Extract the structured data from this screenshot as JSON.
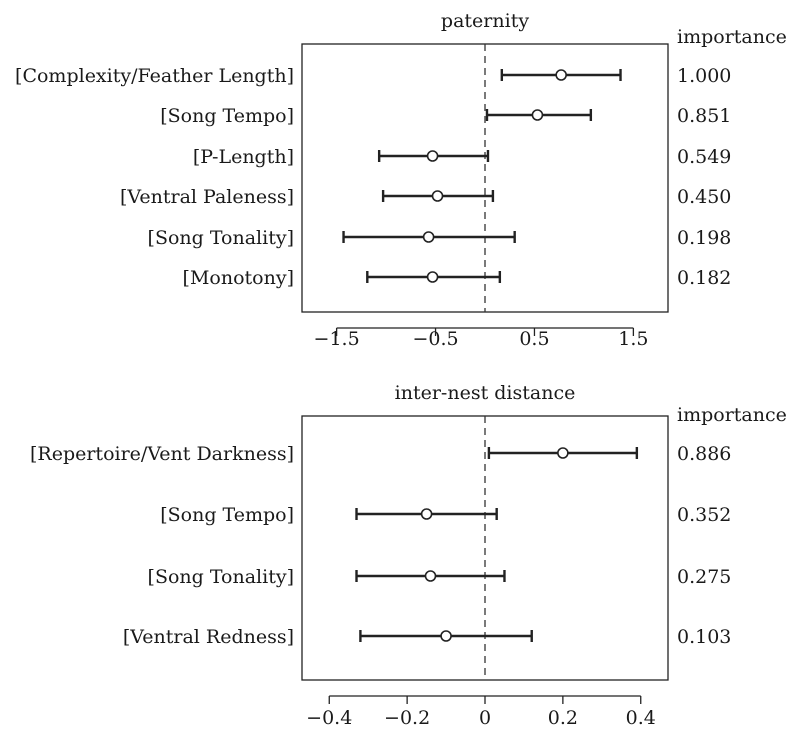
{
  "chart_data": [
    {
      "type": "scatter",
      "subtype": "coefficient-plot-with-error-bars",
      "title": "paternity",
      "importance_label": "importance",
      "xlim": [
        -1.85,
        1.85
      ],
      "xticks": [
        -1.5,
        -0.5,
        0.5,
        1.5
      ],
      "xtick_labels": [
        "−1.5",
        "−0.5",
        "0.5",
        "1.5"
      ],
      "reference_line": 0,
      "grid": false,
      "items": [
        {
          "label": "[Complexity/Feather Length]",
          "estimate": 0.77,
          "lower": 0.17,
          "upper": 1.37,
          "importance": "1.000"
        },
        {
          "label": "[Song Tempo]",
          "estimate": 0.53,
          "lower": 0.02,
          "upper": 1.07,
          "importance": "0.851"
        },
        {
          "label": "[P-Length]",
          "estimate": -0.53,
          "lower": -1.07,
          "upper": 0.03,
          "importance": "0.549"
        },
        {
          "label": "[Ventral Paleness]",
          "estimate": -0.48,
          "lower": -1.03,
          "upper": 0.08,
          "importance": "0.450"
        },
        {
          "label": "[Song Tonality]",
          "estimate": -0.57,
          "lower": -1.43,
          "upper": 0.3,
          "importance": "0.198"
        },
        {
          "label": "[Monotony]",
          "estimate": -0.53,
          "lower": -1.19,
          "upper": 0.15,
          "importance": "0.182"
        }
      ]
    },
    {
      "type": "scatter",
      "subtype": "coefficient-plot-with-error-bars",
      "title": "inter-nest distance",
      "importance_label": "importance",
      "xlim": [
        -0.47,
        0.47
      ],
      "xticks": [
        -0.4,
        -0.2,
        0,
        0.2,
        0.4
      ],
      "xtick_labels": [
        "−0.4",
        "−0.2",
        "0",
        "0.2",
        "0.4"
      ],
      "reference_line": 0,
      "grid": false,
      "items": [
        {
          "label": "[Repertoire/Vent Darkness]",
          "estimate": 0.2,
          "lower": 0.01,
          "upper": 0.39,
          "importance": "0.886"
        },
        {
          "label": "[Song Tempo]",
          "estimate": -0.15,
          "lower": -0.33,
          "upper": 0.03,
          "importance": "0.352"
        },
        {
          "label": "[Song Tonality]",
          "estimate": -0.14,
          "lower": -0.33,
          "upper": 0.05,
          "importance": "0.275"
        },
        {
          "label": "[Ventral Redness]",
          "estimate": -0.1,
          "lower": -0.32,
          "upper": 0.12,
          "importance": "0.103"
        }
      ]
    }
  ]
}
